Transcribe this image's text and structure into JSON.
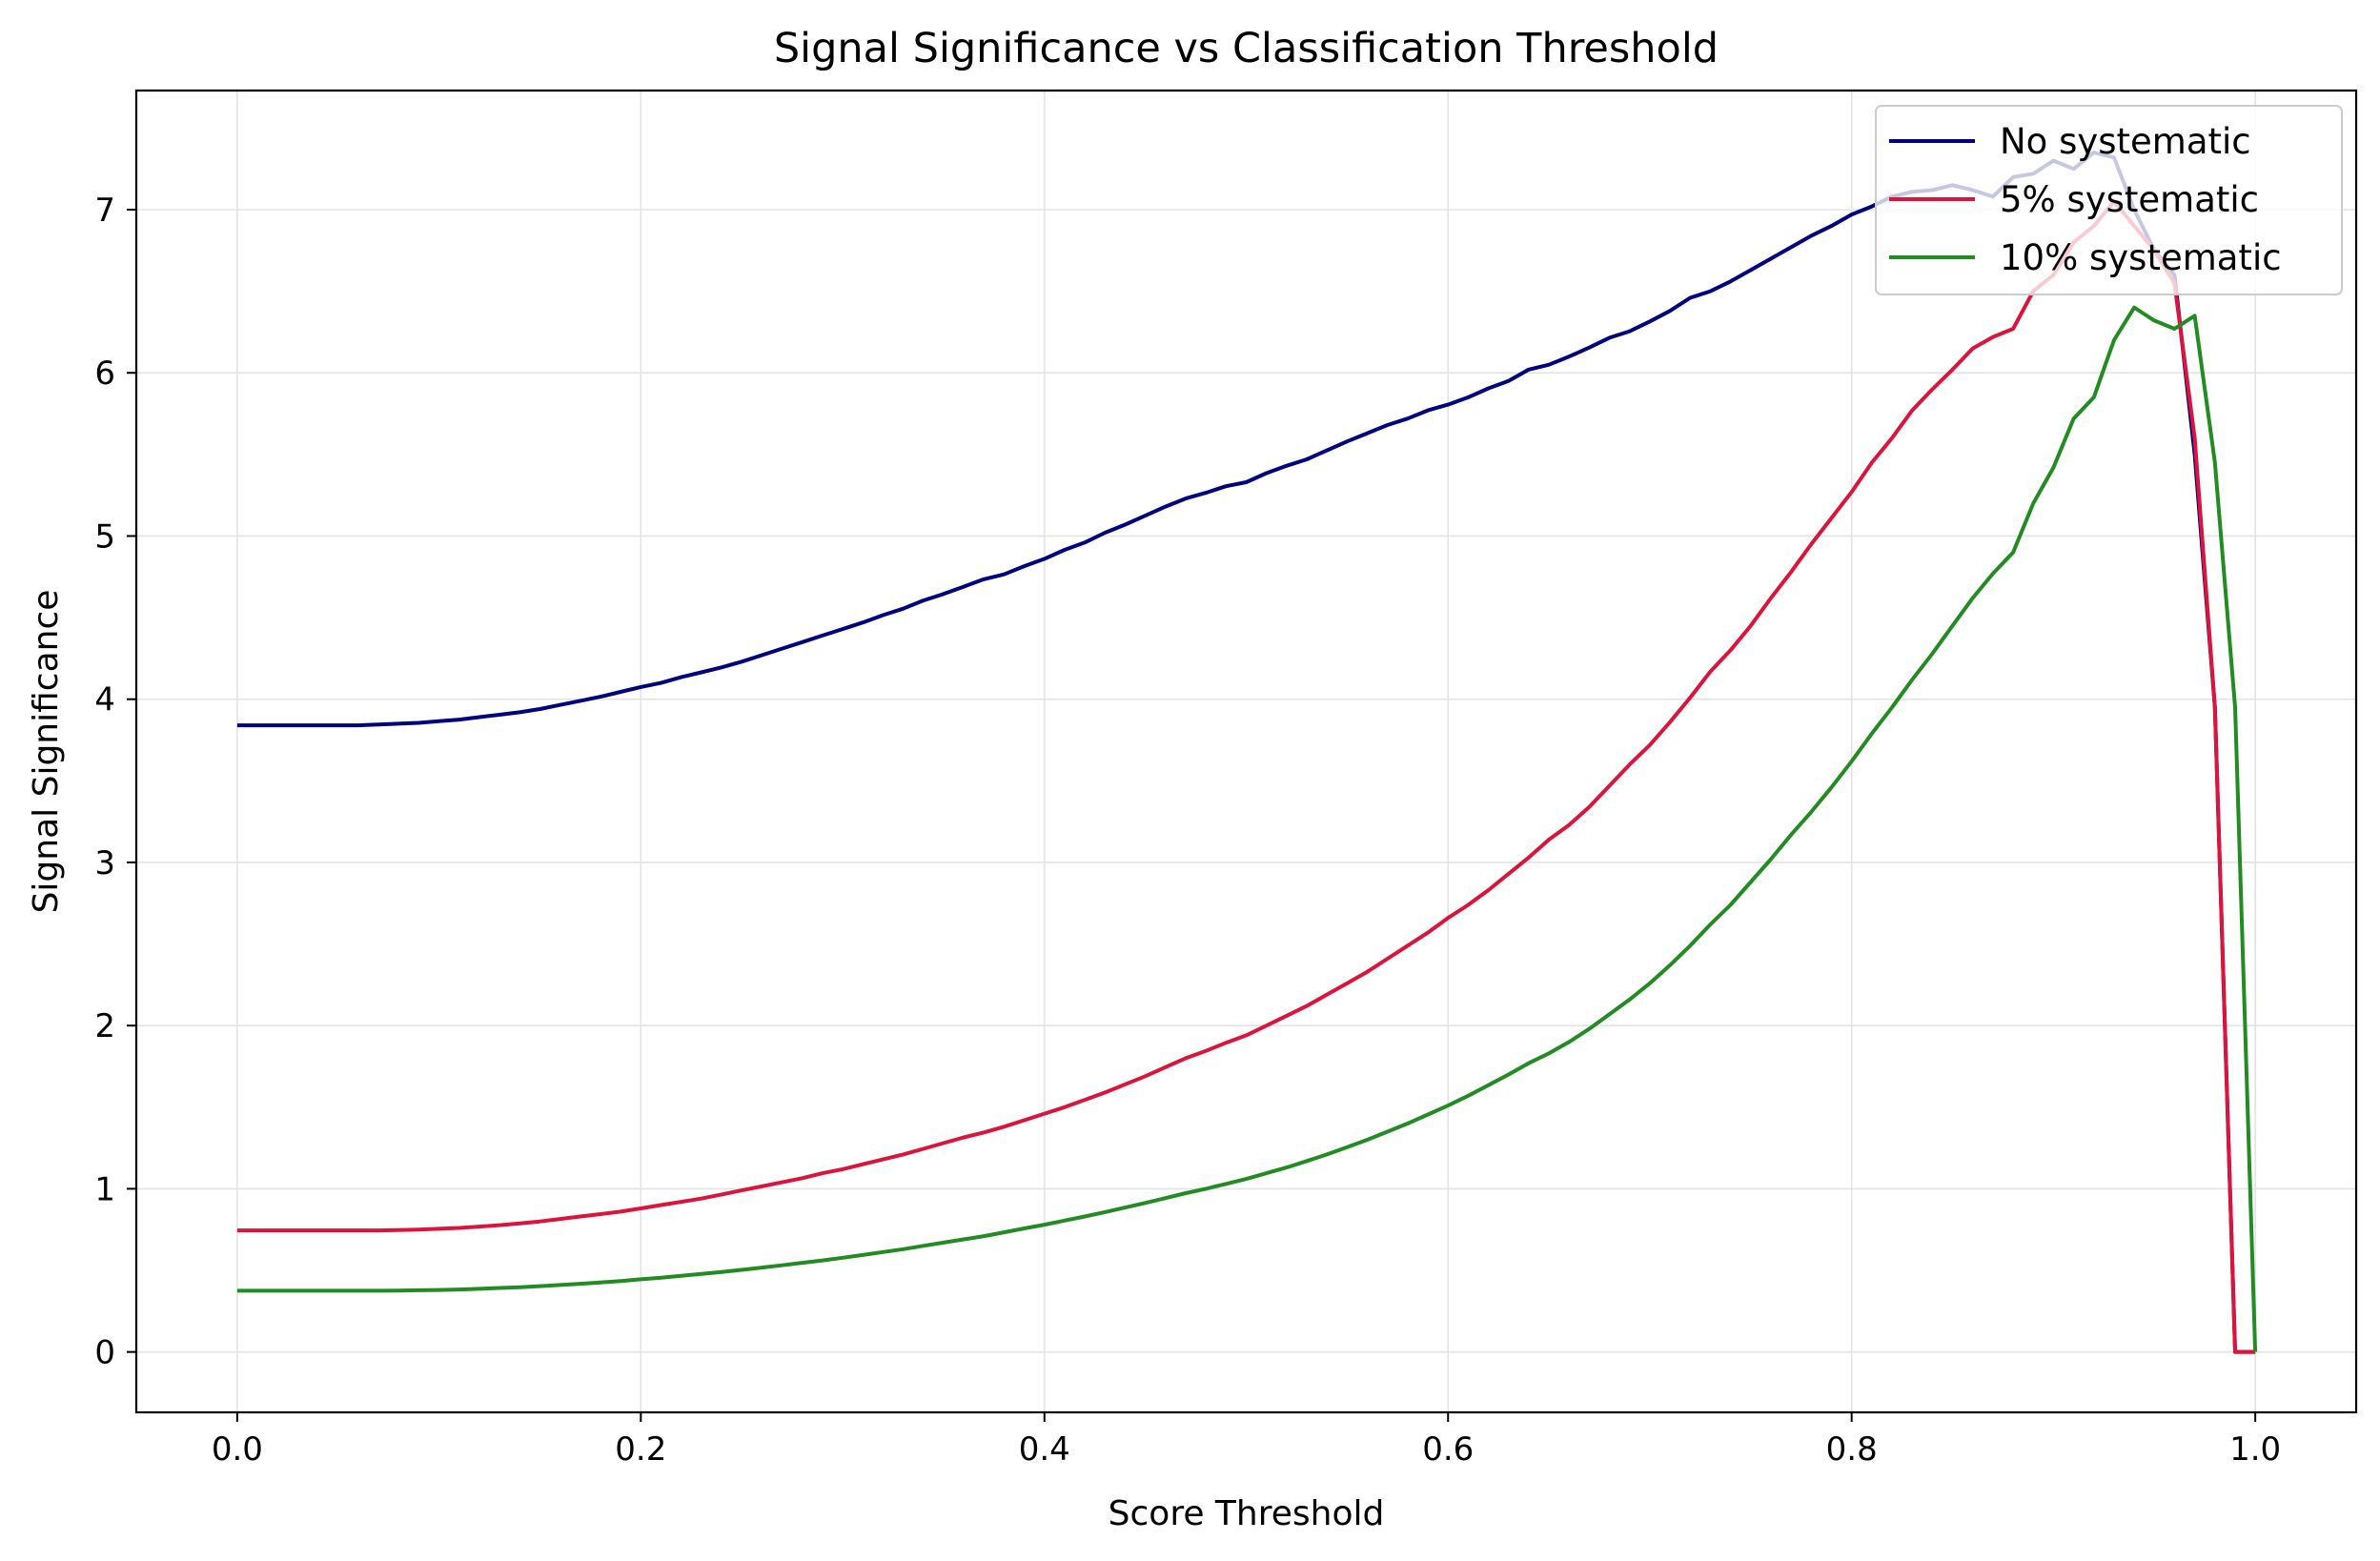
{
  "chart_data": {
    "type": "line",
    "title": "Signal Significance vs Classification Threshold",
    "xlabel": "Score Threshold",
    "ylabel": "Signal Significance",
    "xlim": [
      -0.05,
      1.05
    ],
    "ylim": [
      -0.37,
      7.73
    ],
    "grid": true,
    "legend_position": "top-right",
    "x_ticks": [
      0.0,
      0.2,
      0.4,
      0.6,
      0.8,
      1.0
    ],
    "x_tick_labels": [
      "0.0",
      "0.2",
      "0.4",
      "0.6",
      "0.8",
      "1.0"
    ],
    "y_ticks": [
      0,
      1,
      2,
      3,
      4,
      5,
      6,
      7
    ],
    "y_tick_labels": [
      "0",
      "1",
      "2",
      "3",
      "4",
      "5",
      "6",
      "7"
    ],
    "x": [
      0.0,
      0.01,
      0.02,
      0.03,
      0.04,
      0.05,
      0.06,
      0.07,
      0.08,
      0.09,
      0.1,
      0.11,
      0.12,
      0.13,
      0.14,
      0.15,
      0.16,
      0.17,
      0.18,
      0.19,
      0.2,
      0.21,
      0.22,
      0.23,
      0.24,
      0.25,
      0.26,
      0.27,
      0.28,
      0.29,
      0.3,
      0.31,
      0.32,
      0.33,
      0.34,
      0.35,
      0.36,
      0.37,
      0.38,
      0.39,
      0.4,
      0.41,
      0.42,
      0.43,
      0.44,
      0.45,
      0.46,
      0.47,
      0.48,
      0.49,
      0.5,
      0.51,
      0.52,
      0.53,
      0.54,
      0.55,
      0.56,
      0.57,
      0.58,
      0.59,
      0.6,
      0.61,
      0.62,
      0.63,
      0.64,
      0.65,
      0.66,
      0.67,
      0.68,
      0.69,
      0.7,
      0.71,
      0.72,
      0.73,
      0.74,
      0.75,
      0.76,
      0.77,
      0.78,
      0.79,
      0.8,
      0.81,
      0.82,
      0.83,
      0.84,
      0.85,
      0.86,
      0.87,
      0.88,
      0.89,
      0.9,
      0.91,
      0.92,
      0.93,
      0.94,
      0.95,
      0.96,
      0.97,
      0.98,
      0.99,
      1.0
    ],
    "series": [
      {
        "name": "No systematic",
        "color": "#000080",
        "values": [
          3.84,
          3.84,
          3.84,
          3.84,
          3.84,
          3.84,
          3.84,
          3.845,
          3.85,
          3.855,
          3.865,
          3.875,
          3.89,
          3.905,
          3.92,
          3.94,
          3.965,
          3.99,
          4.015,
          4.045,
          4.075,
          4.1,
          4.135,
          4.165,
          4.195,
          4.23,
          4.27,
          4.31,
          4.35,
          4.39,
          4.43,
          4.47,
          4.515,
          4.555,
          4.605,
          4.645,
          4.69,
          4.735,
          4.765,
          4.815,
          4.86,
          4.915,
          4.96,
          5.02,
          5.07,
          5.125,
          5.18,
          5.23,
          5.265,
          5.305,
          5.33,
          5.385,
          5.43,
          5.47,
          5.525,
          5.58,
          5.63,
          5.68,
          5.72,
          5.77,
          5.805,
          5.85,
          5.905,
          5.95,
          6.02,
          6.05,
          6.1,
          6.155,
          6.215,
          6.255,
          6.315,
          6.38,
          6.46,
          6.5,
          6.56,
          6.63,
          6.7,
          6.77,
          6.84,
          6.9,
          6.97,
          7.02,
          7.08,
          7.11,
          7.12,
          7.15,
          7.12,
          7.08,
          7.2,
          7.22,
          7.3,
          7.25,
          7.35,
          7.32,
          7.0,
          6.75,
          6.6,
          5.5,
          3.95,
          0.0,
          0.0
        ]
      },
      {
        "name": "5% systematic",
        "color": "#DC143C",
        "values": [
          0.745,
          0.745,
          0.745,
          0.745,
          0.745,
          0.745,
          0.745,
          0.745,
          0.747,
          0.75,
          0.755,
          0.76,
          0.768,
          0.777,
          0.788,
          0.8,
          0.815,
          0.83,
          0.845,
          0.86,
          0.88,
          0.9,
          0.92,
          0.94,
          0.965,
          0.99,
          1.015,
          1.04,
          1.065,
          1.095,
          1.12,
          1.15,
          1.18,
          1.21,
          1.245,
          1.28,
          1.315,
          1.345,
          1.38,
          1.42,
          1.46,
          1.5,
          1.545,
          1.59,
          1.64,
          1.69,
          1.745,
          1.8,
          1.845,
          1.895,
          1.94,
          2.0,
          2.06,
          2.12,
          2.19,
          2.26,
          2.33,
          2.41,
          2.49,
          2.57,
          2.66,
          2.74,
          2.83,
          2.93,
          3.03,
          3.14,
          3.23,
          3.34,
          3.47,
          3.6,
          3.72,
          3.86,
          4.01,
          4.17,
          4.3,
          4.45,
          4.62,
          4.78,
          4.95,
          5.11,
          5.27,
          5.45,
          5.6,
          5.77,
          5.9,
          6.02,
          6.15,
          6.22,
          6.27,
          6.5,
          6.6,
          6.8,
          6.9,
          7.05,
          6.9,
          6.75,
          6.55,
          5.6,
          3.95,
          0.0,
          0.0
        ]
      },
      {
        "name": "10% systematic",
        "color": "#228B22",
        "values": [
          0.375,
          0.375,
          0.375,
          0.375,
          0.375,
          0.375,
          0.375,
          0.375,
          0.376,
          0.378,
          0.38,
          0.383,
          0.387,
          0.392,
          0.397,
          0.403,
          0.41,
          0.418,
          0.426,
          0.435,
          0.445,
          0.455,
          0.466,
          0.478,
          0.49,
          0.503,
          0.517,
          0.531,
          0.546,
          0.561,
          0.577,
          0.594,
          0.612,
          0.63,
          0.65,
          0.67,
          0.69,
          0.71,
          0.733,
          0.757,
          0.78,
          0.805,
          0.83,
          0.857,
          0.885,
          0.913,
          0.943,
          0.973,
          1.0,
          1.03,
          1.06,
          1.095,
          1.13,
          1.17,
          1.21,
          1.255,
          1.3,
          1.35,
          1.4,
          1.455,
          1.51,
          1.57,
          1.635,
          1.7,
          1.77,
          1.83,
          1.9,
          1.98,
          2.07,
          2.16,
          2.26,
          2.37,
          2.49,
          2.62,
          2.74,
          2.88,
          3.02,
          3.17,
          3.31,
          3.46,
          3.62,
          3.79,
          3.95,
          4.12,
          4.28,
          4.45,
          4.62,
          4.77,
          4.9,
          5.2,
          5.42,
          5.72,
          5.85,
          6.2,
          6.4,
          6.32,
          6.27,
          6.35,
          5.45,
          3.95,
          0.0
        ]
      }
    ]
  }
}
